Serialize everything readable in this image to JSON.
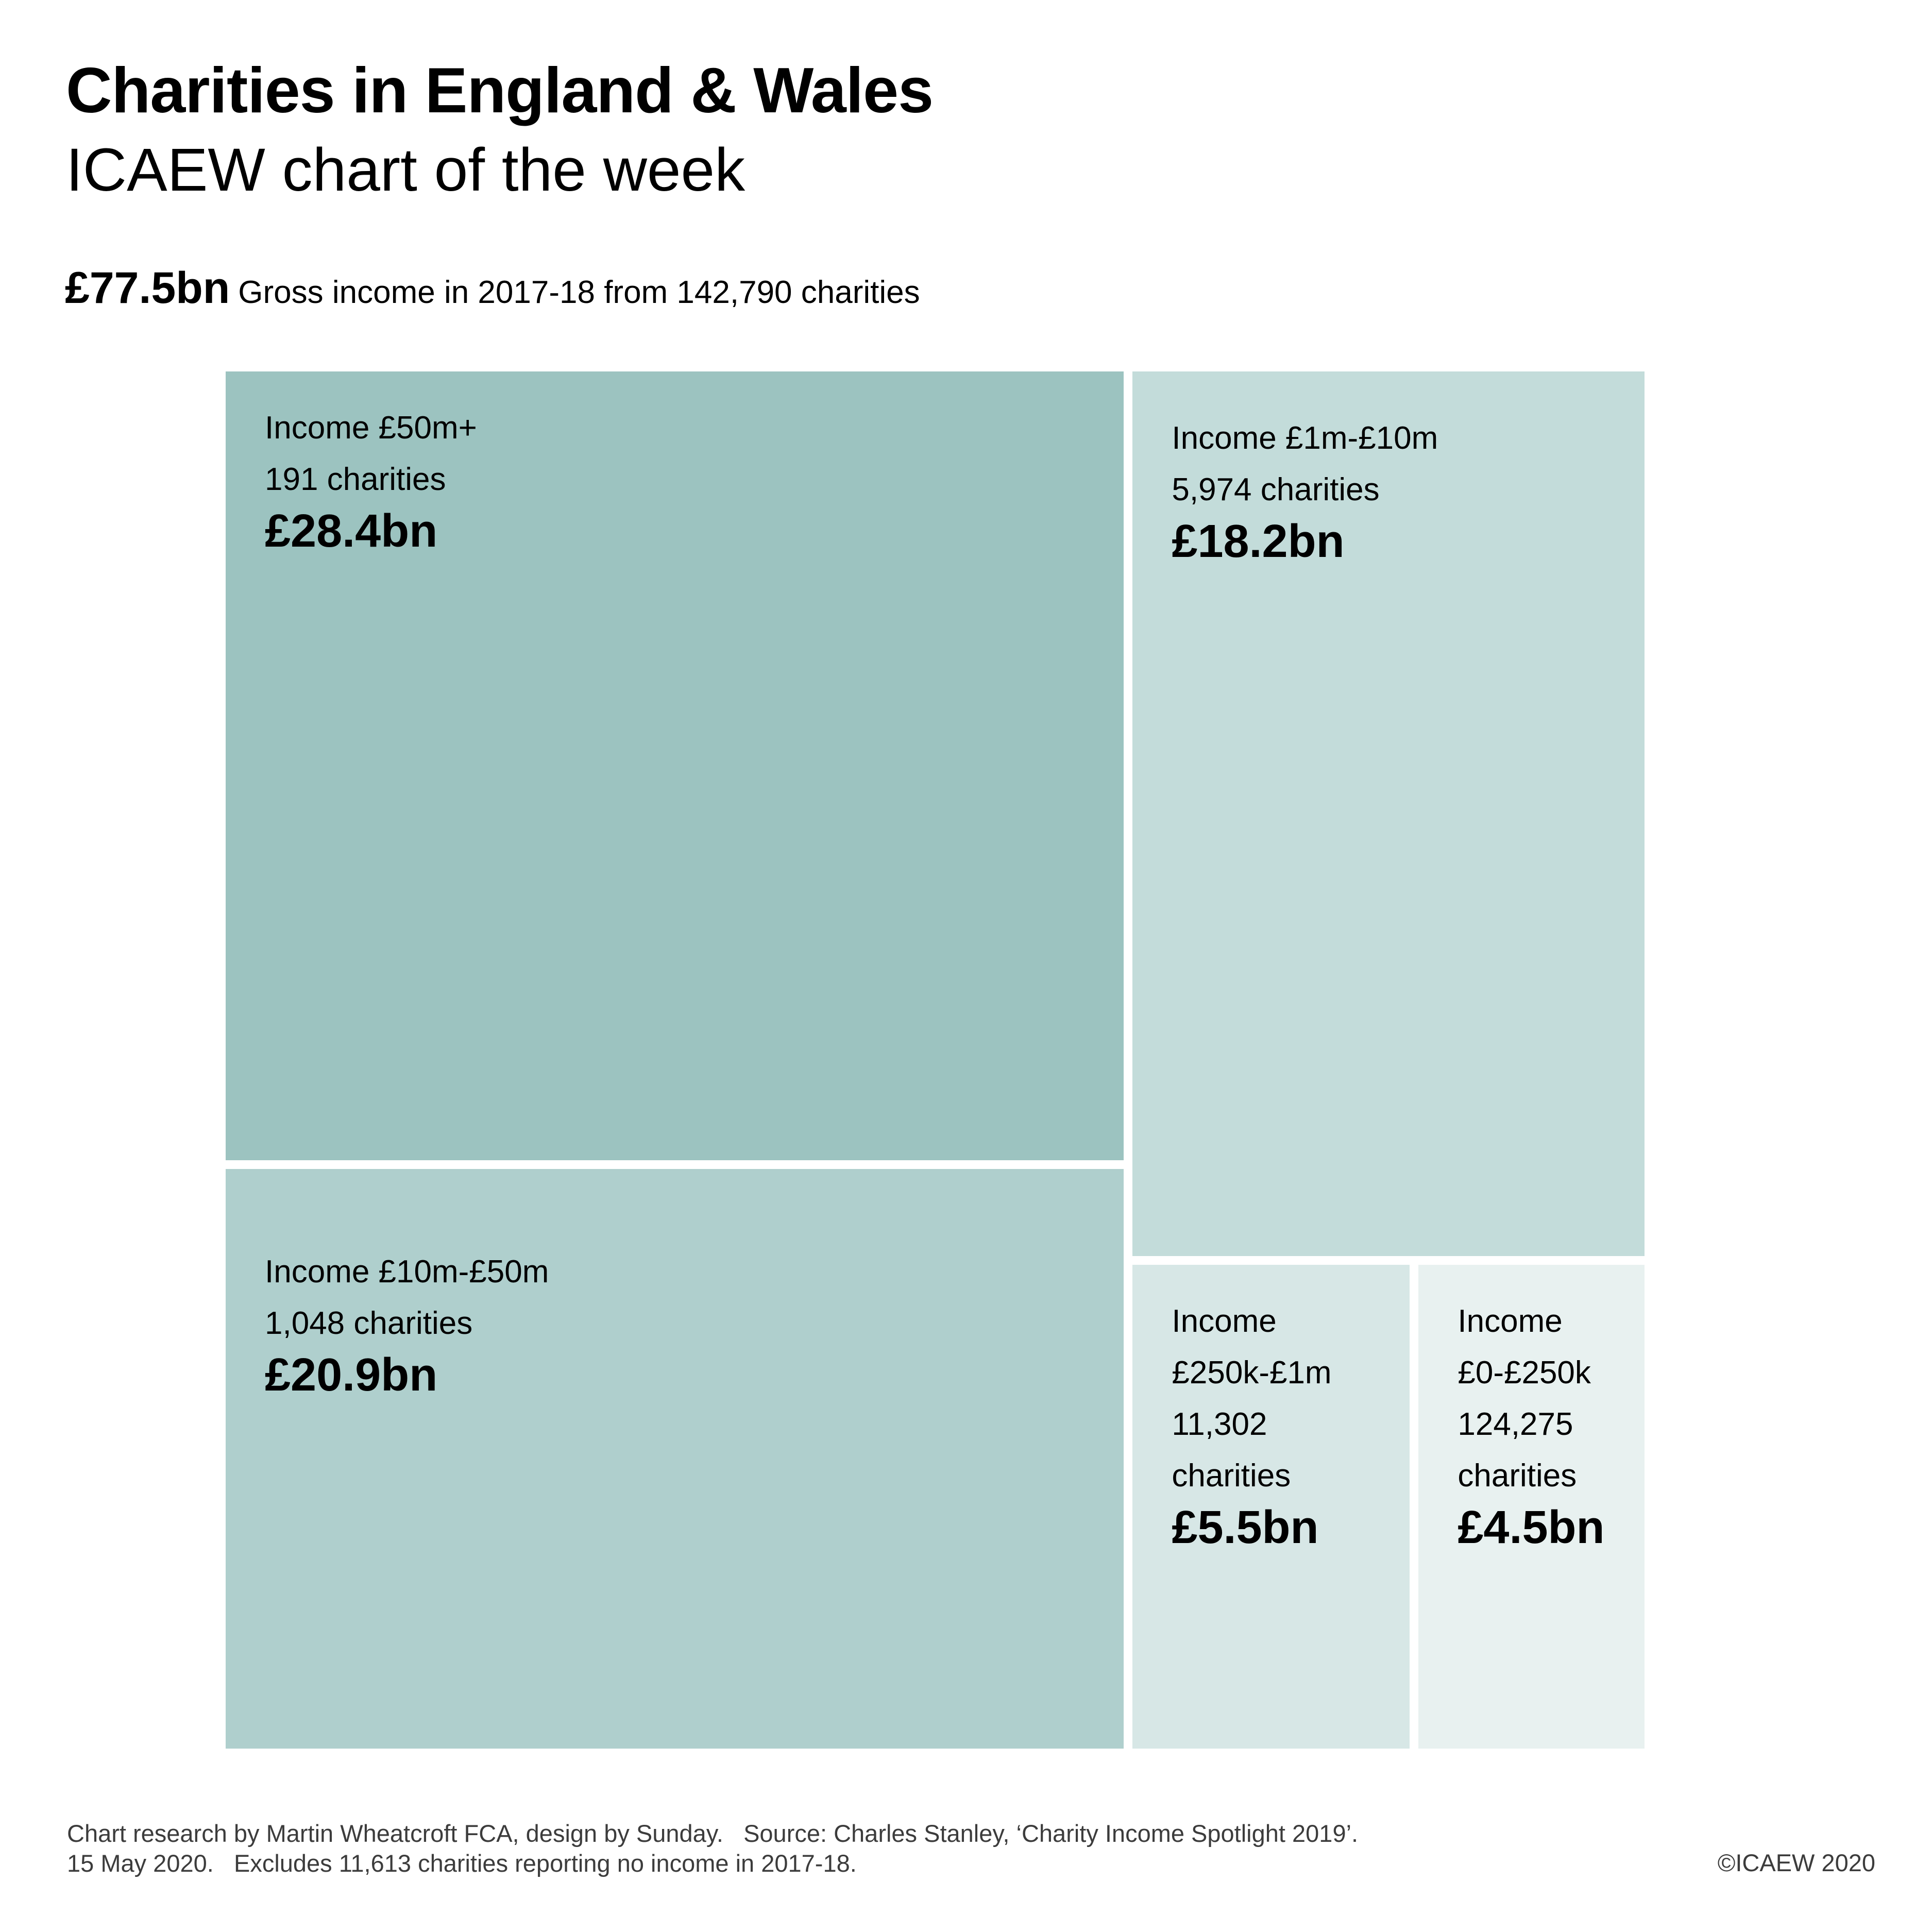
{
  "header": {
    "title": "Charities in England & Wales",
    "subtitle": "ICAEW chart of the week",
    "headline_value": "£77.5bn",
    "headline_text": "Gross income in 2017-18 from 142,790 charities"
  },
  "chart_data": {
    "type": "treemap",
    "title": "Charities in England & Wales",
    "subtitle": "ICAEW chart of the week",
    "total_label": "£77.5bn",
    "total_description": "Gross income in 2017-18 from 142,790 charities",
    "unit": "£bn",
    "items": [
      {
        "band": "Income £50m+",
        "band_lines": [
          "Income £50m+"
        ],
        "charities": "191 charities",
        "charities_lines": [
          "191 charities"
        ],
        "value": 28.4,
        "value_label": "£28.4bn",
        "color": "#9CC3C0"
      },
      {
        "band": "Income £10m-£50m",
        "band_lines": [
          "Income £10m-£50m"
        ],
        "charities": "1,048 charities",
        "charities_lines": [
          "1,048 charities"
        ],
        "value": 20.9,
        "value_label": "£20.9bn",
        "color": "#AFCFCD"
      },
      {
        "band": "Income £1m-£10m",
        "band_lines": [
          "Income £1m-£10m"
        ],
        "charities": "5,974 charities",
        "charities_lines": [
          "5,974 charities"
        ],
        "value": 18.2,
        "value_label": "£18.2bn",
        "color": "#C3DCDA"
      },
      {
        "band": "Income £250k-£1m",
        "band_lines": [
          "Income",
          "£250k-£1m"
        ],
        "charities": "11,302 charities",
        "charities_lines": [
          "11,302",
          "charities"
        ],
        "value": 5.5,
        "value_label": "£5.5bn",
        "color": "#D7E7E6"
      },
      {
        "band": "Income £0-£250k",
        "band_lines": [
          "Income",
          "£0-£250k"
        ],
        "charities": "124,275 charities",
        "charities_lines": [
          "124,275",
          "charities"
        ],
        "value": 4.5,
        "value_label": "£4.5bn",
        "color": "#E8F1F0"
      }
    ]
  },
  "footer": {
    "line1": "Chart research by Martin Wheatcroft FCA, design by Sunday.   Source: Charles Stanley, ‘Charity Income Spotlight 2019’.",
    "line2": "15 May 2020.   Excludes 11,613 charities reporting no income in 2017-18.",
    "copyright": "©ICAEW 2020"
  }
}
